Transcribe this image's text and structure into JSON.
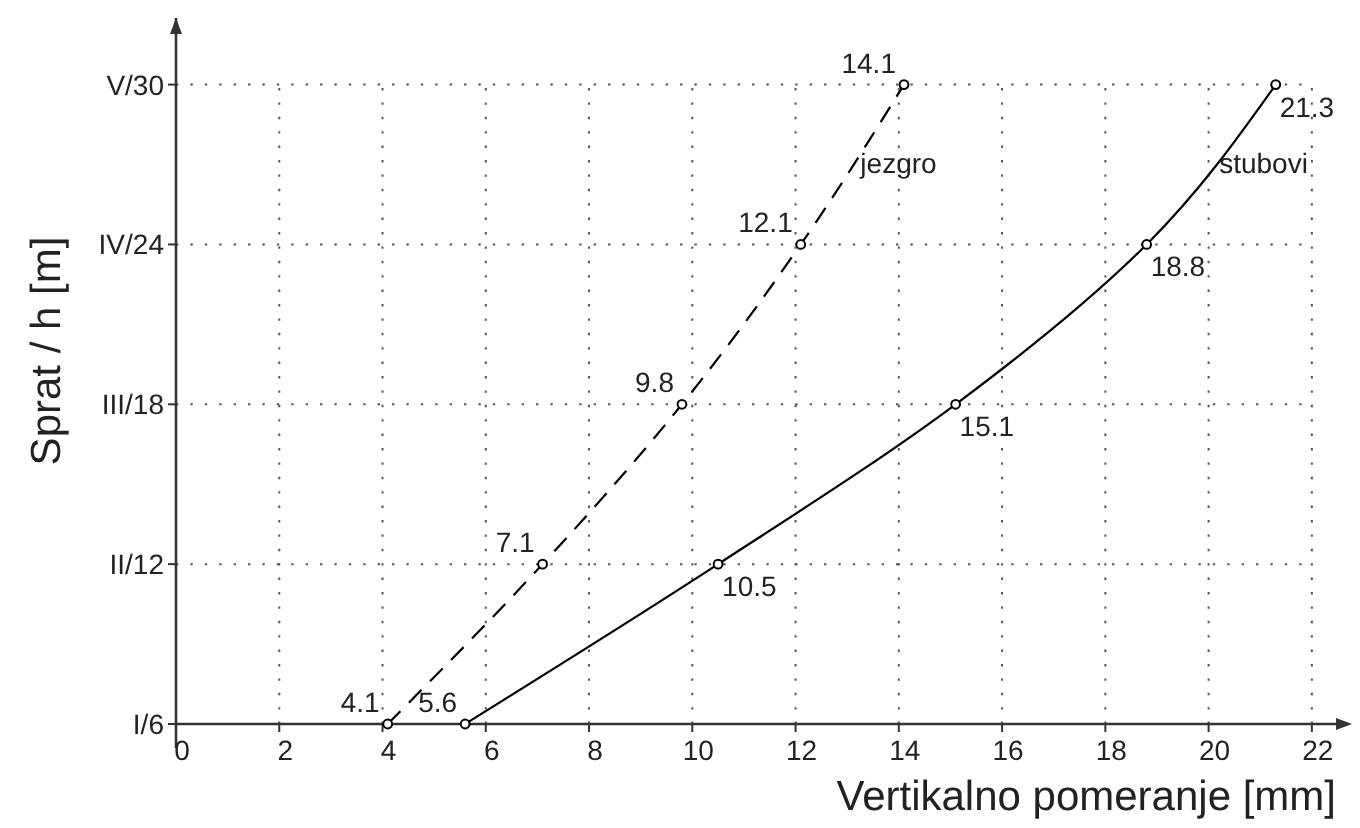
{
  "chart_data": {
    "type": "line",
    "xlabel": "Vertikalno pomeranje [mm]",
    "ylabel": "Sprat / h [m]",
    "xlim": [
      0,
      22.7
    ],
    "xticks": [
      0,
      2,
      4,
      6,
      8,
      10,
      12,
      14,
      16,
      18,
      20,
      22
    ],
    "ylim": [
      6,
      32.5
    ],
    "yticks": [
      {
        "value": 6,
        "label": "I/6"
      },
      {
        "value": 12,
        "label": "II/12"
      },
      {
        "value": 18,
        "label": "III/18"
      },
      {
        "value": 24,
        "label": "IV/24"
      },
      {
        "value": 30,
        "label": "V/30"
      }
    ],
    "grid": true,
    "marker": "circle",
    "series": [
      {
        "name": "jezgro",
        "color": "#000000",
        "line_style": "dashed",
        "x": [
          4.1,
          7.1,
          9.8,
          12.1,
          14.1
        ],
        "values": [
          6,
          12,
          18,
          24,
          30
        ]
      },
      {
        "name": "stubovi",
        "color": "#000000",
        "line_style": "solid",
        "x": [
          5.6,
          10.5,
          15.1,
          18.8,
          21.3
        ],
        "values": [
          6,
          12,
          18,
          24,
          30
        ]
      }
    ],
    "annotations": [
      {
        "text": "4.1",
        "x": 4.1,
        "y": 6
      },
      {
        "text": "7.1",
        "x": 7.1,
        "y": 12
      },
      {
        "text": "9.8",
        "x": 9.8,
        "y": 18
      },
      {
        "text": "12.1",
        "x": 12.1,
        "y": 24
      },
      {
        "text": "14.1",
        "x": 14.1,
        "y": 30
      },
      {
        "text": "5.6",
        "x": 5.6,
        "y": 6
      },
      {
        "text": "10.5",
        "x": 10.5,
        "y": 12
      },
      {
        "text": "15.1",
        "x": 15.1,
        "y": 18
      },
      {
        "text": "18.8",
        "x": 18.8,
        "y": 24
      },
      {
        "text": "21.3",
        "x": 21.3,
        "y": 30
      }
    ]
  }
}
